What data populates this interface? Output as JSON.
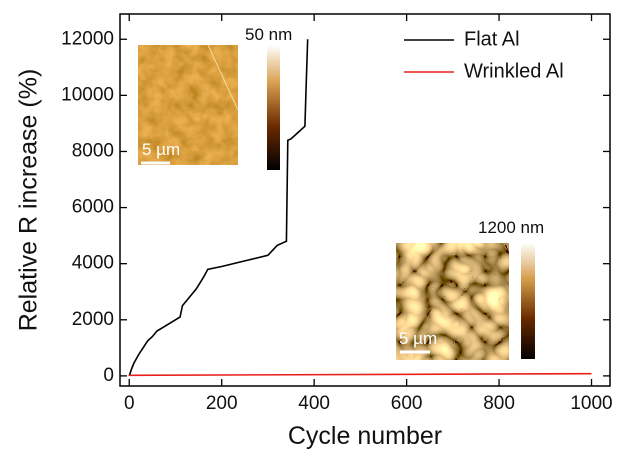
{
  "chart_data": {
    "type": "line",
    "x_label": "Cycle number",
    "y_label": "Relative R increase (%)",
    "xlim": [
      -20,
      1040
    ],
    "ylim": [
      -360,
      12900
    ],
    "xticks": [
      0,
      200,
      400,
      600,
      800,
      1000
    ],
    "yticks": [
      0,
      2000,
      4000,
      6000,
      8000,
      10000,
      12000
    ],
    "grid": false,
    "legend": "top-right",
    "series": [
      {
        "name": "Flat Al",
        "color": "#000000",
        "x": [
          0,
          5,
          10,
          20,
          30,
          40,
          50,
          60,
          80,
          100,
          110,
          115,
          125,
          135,
          145,
          160,
          170,
          200,
          250,
          300,
          320,
          340,
          343,
          350,
          360,
          380,
          383,
          386
        ],
        "values": [
          0,
          250,
          450,
          750,
          1000,
          1250,
          1400,
          1600,
          1800,
          2000,
          2100,
          2500,
          2700,
          2900,
          3100,
          3500,
          3800,
          3900,
          4100,
          4300,
          4650,
          4800,
          8400,
          8450,
          8600,
          8900,
          10500,
          12000
        ]
      },
      {
        "name": "Wrinkled Al",
        "color": "#e8201c",
        "x": [
          0,
          1000
        ],
        "values": [
          20,
          80
        ]
      }
    ],
    "annotations": [
      "50 nm",
      "5 µm",
      "1200 nm",
      "5 µm"
    ]
  }
}
